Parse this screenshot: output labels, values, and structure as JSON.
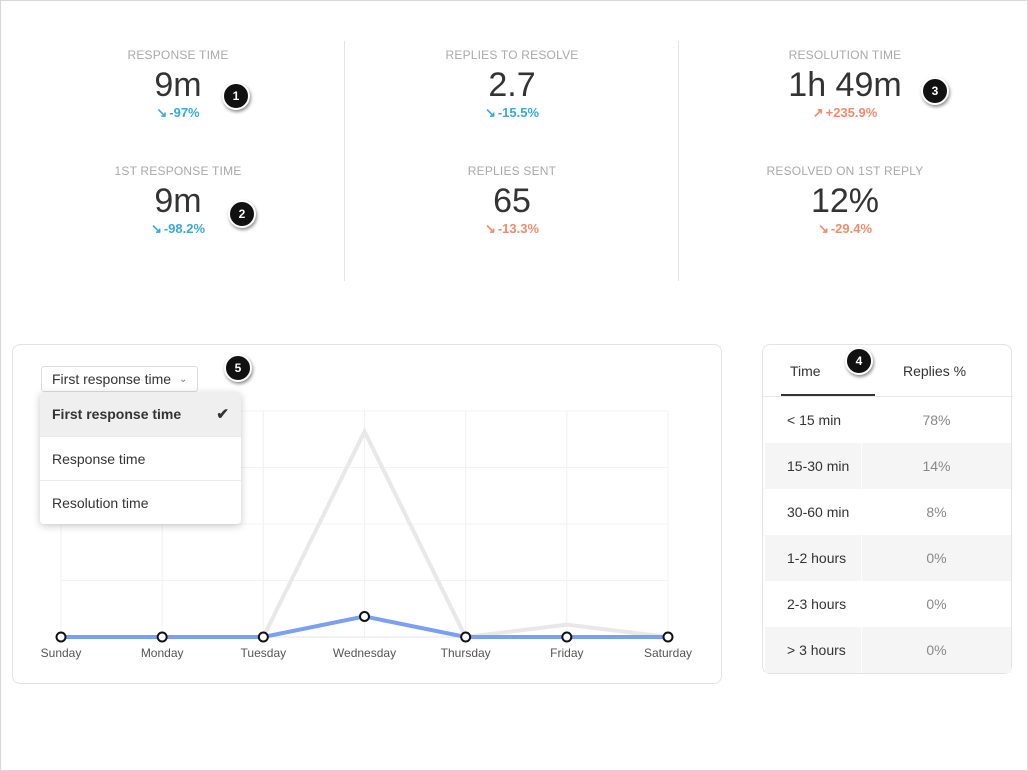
{
  "colors": {
    "down": "#3aa9d8",
    "up": "#ef8c6c",
    "line_highlight": "#7b9ff3",
    "line_muted": "#e8e8e8"
  },
  "metrics": [
    {
      "label": "RESPONSE TIME",
      "value": "9m",
      "delta": "-97%",
      "direction": "down",
      "arrow": "↘",
      "color": "#3aa9d8"
    },
    {
      "label": "REPLIES TO RESOLVE",
      "value": "2.7",
      "delta": "-15.5%",
      "direction": "down",
      "arrow": "↘",
      "color": "#3aa9d8"
    },
    {
      "label": "RESOLUTION TIME",
      "value": "1h 49m",
      "delta": "+235.9%",
      "direction": "up",
      "arrow": "↗",
      "color": "#ef8c6c"
    },
    {
      "label": "1ST RESPONSE TIME",
      "value": "9m",
      "delta": "-98.2%",
      "direction": "down",
      "arrow": "↘",
      "color": "#3aa9d8"
    },
    {
      "label": "REPLIES SENT",
      "value": "65",
      "delta": "-13.3%",
      "direction": "down",
      "arrow": "↘",
      "color": "#ef8c6c"
    },
    {
      "label": "RESOLVED ON 1ST REPLY",
      "value": "12%",
      "delta": "-29.4%",
      "direction": "down",
      "arrow": "↘",
      "color": "#ef8c6c"
    }
  ],
  "callouts": [
    "1",
    "2",
    "3",
    "4",
    "5"
  ],
  "chart": {
    "select": {
      "value": "First response time",
      "chevron": "chevron-down-icon"
    },
    "options": [
      {
        "label": "First response time",
        "selected": true
      },
      {
        "label": "Response time",
        "selected": false
      },
      {
        "label": "Resolution time",
        "selected": false
      }
    ]
  },
  "chart_data": {
    "type": "line",
    "categories": [
      "Sunday",
      "Monday",
      "Tuesday",
      "Wednesday",
      "Thursday",
      "Friday",
      "Saturday"
    ],
    "series": [
      {
        "values": [
          0.0,
          0.0,
          0.0,
          0.1,
          0.0,
          0.0,
          0.0
        ],
        "color": "#7b9ff3",
        "markers": true
      },
      {
        "values": [
          0.0,
          0.0,
          0.0,
          1.0,
          0.0,
          0.06,
          0.0
        ],
        "color": "#e8e8e8",
        "markers": false
      }
    ],
    "ylim": [
      0,
      1.1
    ],
    "grid": true
  },
  "table": {
    "tabs": [
      {
        "label": "Time",
        "active": true
      },
      {
        "label": "Replies %",
        "active": false
      }
    ],
    "rows": [
      {
        "time": "< 15 min",
        "pct": "78%"
      },
      {
        "time": "15-30 min",
        "pct": "14%"
      },
      {
        "time": "30-60 min",
        "pct": "8%"
      },
      {
        "time": "1-2 hours",
        "pct": "0%"
      },
      {
        "time": "2-3 hours",
        "pct": "0%"
      },
      {
        "time": "> 3 hours",
        "pct": "0%"
      }
    ]
  }
}
